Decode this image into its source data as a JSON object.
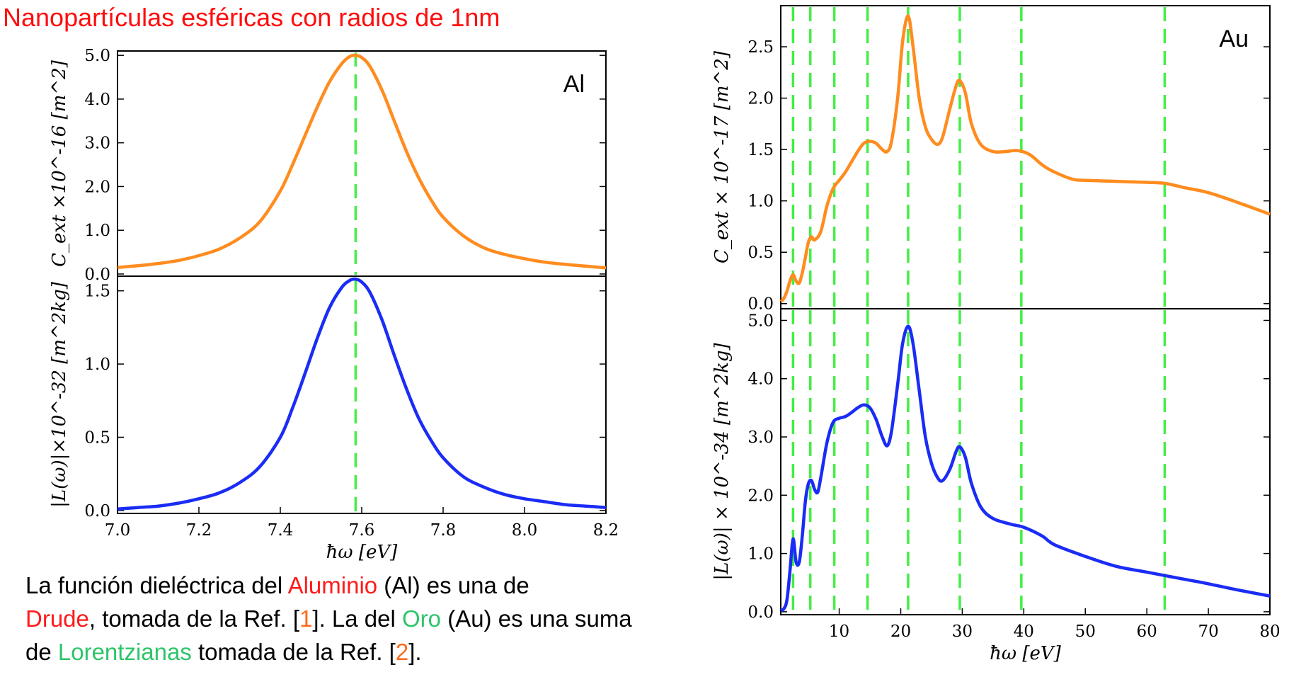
{
  "page_title": "Nanopartículas esféricas con radios de 1nm",
  "caption": {
    "p1": "La función dieléctrica del ",
    "aluminio": "Aluminio",
    "p2": " (Al) es una de",
    "drude": "Drude",
    "p3": ", tomada de la Ref. [",
    "ref1": "1",
    "p4": "]. La del  ",
    "oro": "Oro",
    "p5": " (Au) es una suma de ",
    "lorentz": "Lorentzianas",
    "p6": " tomada de la Ref. [",
    "ref2": "2",
    "p7": "]."
  },
  "colors": {
    "cext": "#ff8c1f",
    "loss": "#1a2cf5",
    "resonance": "#44ee44",
    "title": "#ff0d0d",
    "caption_red": "#ff1a1a",
    "caption_green": "#2ec46a",
    "caption_orange": "#ff6a1a"
  },
  "chart_data": [
    {
      "type": "line",
      "panel": "Al-top",
      "label": "Al",
      "ylabel": "C_ext ×10^-16 [m^2]",
      "xlim": [
        7.0,
        8.2
      ],
      "ylim": [
        -0.05,
        5.1
      ],
      "yticks": [
        "0.0",
        "1.0",
        "2.0",
        "3.0",
        "4.0",
        "5.0"
      ],
      "ytick_values": [
        0,
        1,
        2,
        3,
        4,
        5
      ],
      "resonances": [
        7.585
      ],
      "series": [
        {
          "x": [
            7.0,
            7.05,
            7.1,
            7.15,
            7.2,
            7.25,
            7.3,
            7.35,
            7.4,
            7.43,
            7.46,
            7.49,
            7.52,
            7.55,
            7.57,
            7.585,
            7.6,
            7.62,
            7.65,
            7.68,
            7.71,
            7.74,
            7.77,
            7.8,
            7.85,
            7.9,
            7.95,
            8.0,
            8.05,
            8.1,
            8.15,
            8.2
          ],
          "values": [
            0.15,
            0.19,
            0.24,
            0.31,
            0.42,
            0.57,
            0.82,
            1.2,
            1.9,
            2.5,
            3.15,
            3.8,
            4.38,
            4.8,
            4.97,
            5.0,
            4.95,
            4.75,
            4.2,
            3.5,
            2.8,
            2.2,
            1.7,
            1.3,
            0.87,
            0.6,
            0.45,
            0.35,
            0.27,
            0.22,
            0.18,
            0.14
          ]
        }
      ]
    },
    {
      "type": "line",
      "panel": "Al-bottom",
      "ylabel": "|L(ω)|×10^-32 [m^2kg]",
      "xlabel": "ħω [eV]",
      "xlim": [
        7.0,
        8.2
      ],
      "ylim": [
        -0.02,
        1.6
      ],
      "xticks": [
        "7.0",
        "7.2",
        "7.4",
        "7.6",
        "7.8",
        "8.0",
        "8.2"
      ],
      "xtick_values": [
        7.0,
        7.2,
        7.4,
        7.6,
        7.8,
        8.0,
        8.2
      ],
      "yticks": [
        "0.0",
        "0.5",
        "1.0",
        "1.5"
      ],
      "ytick_values": [
        0,
        0.5,
        1.0,
        1.5
      ],
      "resonances": [
        7.585
      ],
      "series": [
        {
          "x": [
            7.0,
            7.05,
            7.1,
            7.15,
            7.2,
            7.25,
            7.3,
            7.35,
            7.4,
            7.43,
            7.46,
            7.49,
            7.52,
            7.55,
            7.57,
            7.585,
            7.6,
            7.62,
            7.65,
            7.68,
            7.71,
            7.74,
            7.77,
            7.8,
            7.85,
            7.9,
            7.95,
            8.0,
            8.05,
            8.1,
            8.15,
            8.2
          ],
          "values": [
            0.01,
            0.02,
            0.03,
            0.05,
            0.08,
            0.12,
            0.19,
            0.3,
            0.5,
            0.7,
            0.93,
            1.17,
            1.38,
            1.52,
            1.57,
            1.58,
            1.56,
            1.49,
            1.3,
            1.06,
            0.83,
            0.63,
            0.48,
            0.36,
            0.23,
            0.16,
            0.11,
            0.08,
            0.06,
            0.04,
            0.03,
            0.02
          ]
        }
      ]
    },
    {
      "type": "line",
      "panel": "Au-top",
      "label": "Au",
      "ylabel": "C_ext × 10^-17 [m^2]",
      "xlim": [
        0.5,
        80
      ],
      "ylim": [
        -0.05,
        2.9
      ],
      "yticks": [
        "0.0",
        "0.5",
        "1.0",
        "1.5",
        "2.0",
        "2.5"
      ],
      "ytick_values": [
        0,
        0.5,
        1.0,
        1.5,
        2.0,
        2.5
      ],
      "resonances": [
        2.5,
        5.3,
        9.2,
        14.6,
        21.2,
        29.6,
        39.6,
        62.9
      ],
      "series": [
        {
          "x": [
            0.5,
            1,
            1.5,
            2,
            2.5,
            3,
            3.5,
            4,
            4.5,
            5,
            5.5,
            6,
            7,
            8,
            9,
            10,
            11,
            12,
            13,
            14,
            15,
            16,
            17,
            17.8,
            18.5,
            19.5,
            20.3,
            21.2,
            22,
            23,
            24,
            25,
            26,
            26.8,
            28,
            29,
            29.6,
            30.5,
            31.5,
            33,
            35,
            37,
            39,
            41,
            43,
            45,
            48,
            50,
            55,
            60,
            63,
            66,
            70,
            75,
            80
          ],
          "values": [
            0.02,
            0.05,
            0.12,
            0.22,
            0.28,
            0.22,
            0.2,
            0.3,
            0.45,
            0.6,
            0.65,
            0.62,
            0.7,
            0.95,
            1.12,
            1.2,
            1.28,
            1.38,
            1.48,
            1.56,
            1.58,
            1.56,
            1.5,
            1.48,
            1.58,
            2.0,
            2.55,
            2.8,
            2.5,
            2.0,
            1.72,
            1.6,
            1.55,
            1.62,
            1.9,
            2.12,
            2.17,
            2.05,
            1.75,
            1.55,
            1.48,
            1.48,
            1.49,
            1.45,
            1.35,
            1.28,
            1.21,
            1.2,
            1.19,
            1.18,
            1.17,
            1.13,
            1.08,
            0.98,
            0.87
          ]
        }
      ]
    },
    {
      "type": "line",
      "panel": "Au-bottom",
      "ylabel": "|L(ω)| × 10^-34 [m^2kg]",
      "xlabel": "ħω [eV]",
      "xlim": [
        0.5,
        80
      ],
      "ylim": [
        -0.05,
        5.2
      ],
      "xticks": [
        "10",
        "20",
        "30",
        "40",
        "50",
        "60",
        "70",
        "80"
      ],
      "xtick_values": [
        10,
        20,
        30,
        40,
        50,
        60,
        70,
        80
      ],
      "yticks": [
        "0.0",
        "1.0",
        "2.0",
        "3.0",
        "4.0",
        "5.0"
      ],
      "ytick_values": [
        0,
        1,
        2,
        3,
        4,
        5
      ],
      "resonances": [
        2.5,
        5.3,
        9.2,
        14.6,
        21.2,
        29.6,
        39.6,
        62.9
      ],
      "series": [
        {
          "x": [
            0.5,
            1,
            1.5,
            2,
            2.5,
            3,
            3.5,
            4,
            4.5,
            5,
            5.5,
            6,
            6.5,
            7,
            8,
            9,
            10,
            11,
            12,
            13,
            14,
            15,
            16,
            17,
            17.8,
            18.5,
            19.5,
            20.3,
            21.2,
            22,
            23,
            24,
            25,
            26,
            26.8,
            28,
            29,
            29.6,
            30.5,
            31.5,
            33,
            35,
            38,
            40,
            43,
            45,
            50,
            55,
            60,
            65,
            70,
            75,
            80
          ],
          "values": [
            0.02,
            0.05,
            0.2,
            0.7,
            1.25,
            0.85,
            0.85,
            1.3,
            1.9,
            2.2,
            2.25,
            2.1,
            2.05,
            2.3,
            2.9,
            3.25,
            3.32,
            3.35,
            3.42,
            3.5,
            3.55,
            3.5,
            3.3,
            3.0,
            2.85,
            3.1,
            3.9,
            4.6,
            4.9,
            4.6,
            3.8,
            3.0,
            2.55,
            2.3,
            2.25,
            2.45,
            2.75,
            2.83,
            2.65,
            2.2,
            1.8,
            1.6,
            1.5,
            1.45,
            1.3,
            1.15,
            0.95,
            0.78,
            0.68,
            0.58,
            0.48,
            0.37,
            0.27
          ]
        }
      ]
    }
  ]
}
